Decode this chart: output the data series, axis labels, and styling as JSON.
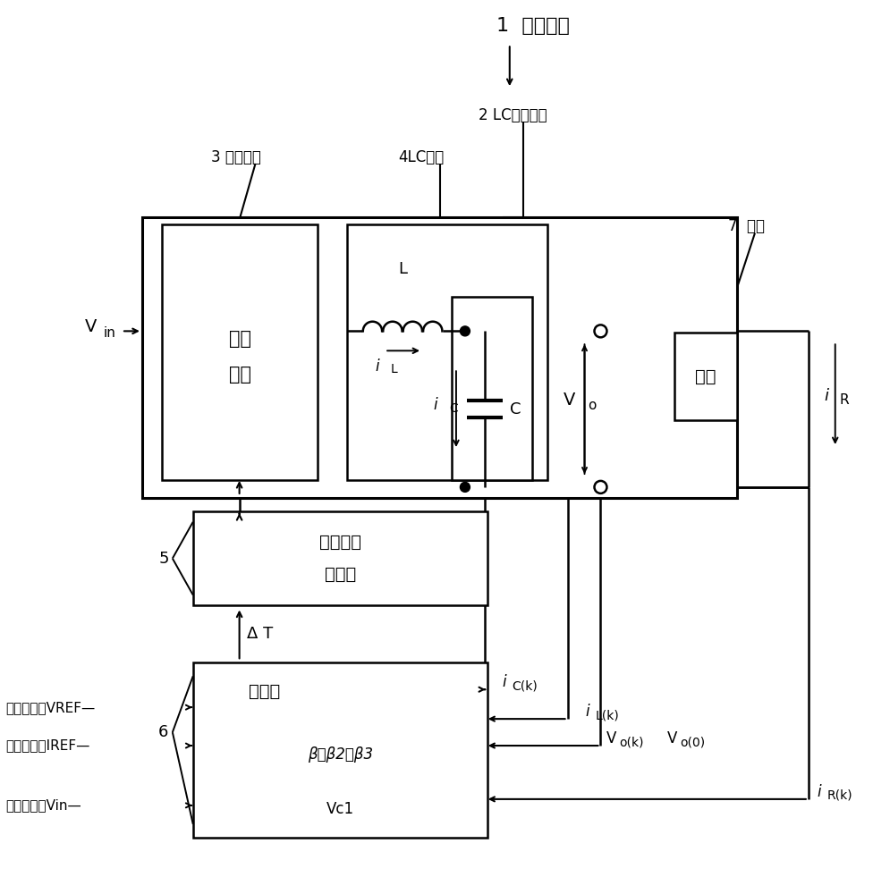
{
  "title": "1  电源装置",
  "label_2": "2 LC斩波电路",
  "label_3": "3 开关电路",
  "label_4": "4LC电路",
  "label_5": "5",
  "label_6": "6",
  "label_7": "7  负载",
  "text_switch_line1": "开关",
  "text_switch_line2": "电路",
  "text_signal_line1": "开关信号",
  "text_signal_line2": "生成部",
  "text_control": "控制部",
  "text_load": "负载",
  "text_L": "L",
  "text_C": "C",
  "text_Vc1": "Vc1",
  "text_beta": "β，β2，β3",
  "text_DeltaT": "Δ T",
  "ref1": "指令电压値VREF—",
  "ref2": "指令电流値IREF—",
  "ref3": "输入电压値Vin—",
  "bg": "#ffffff"
}
